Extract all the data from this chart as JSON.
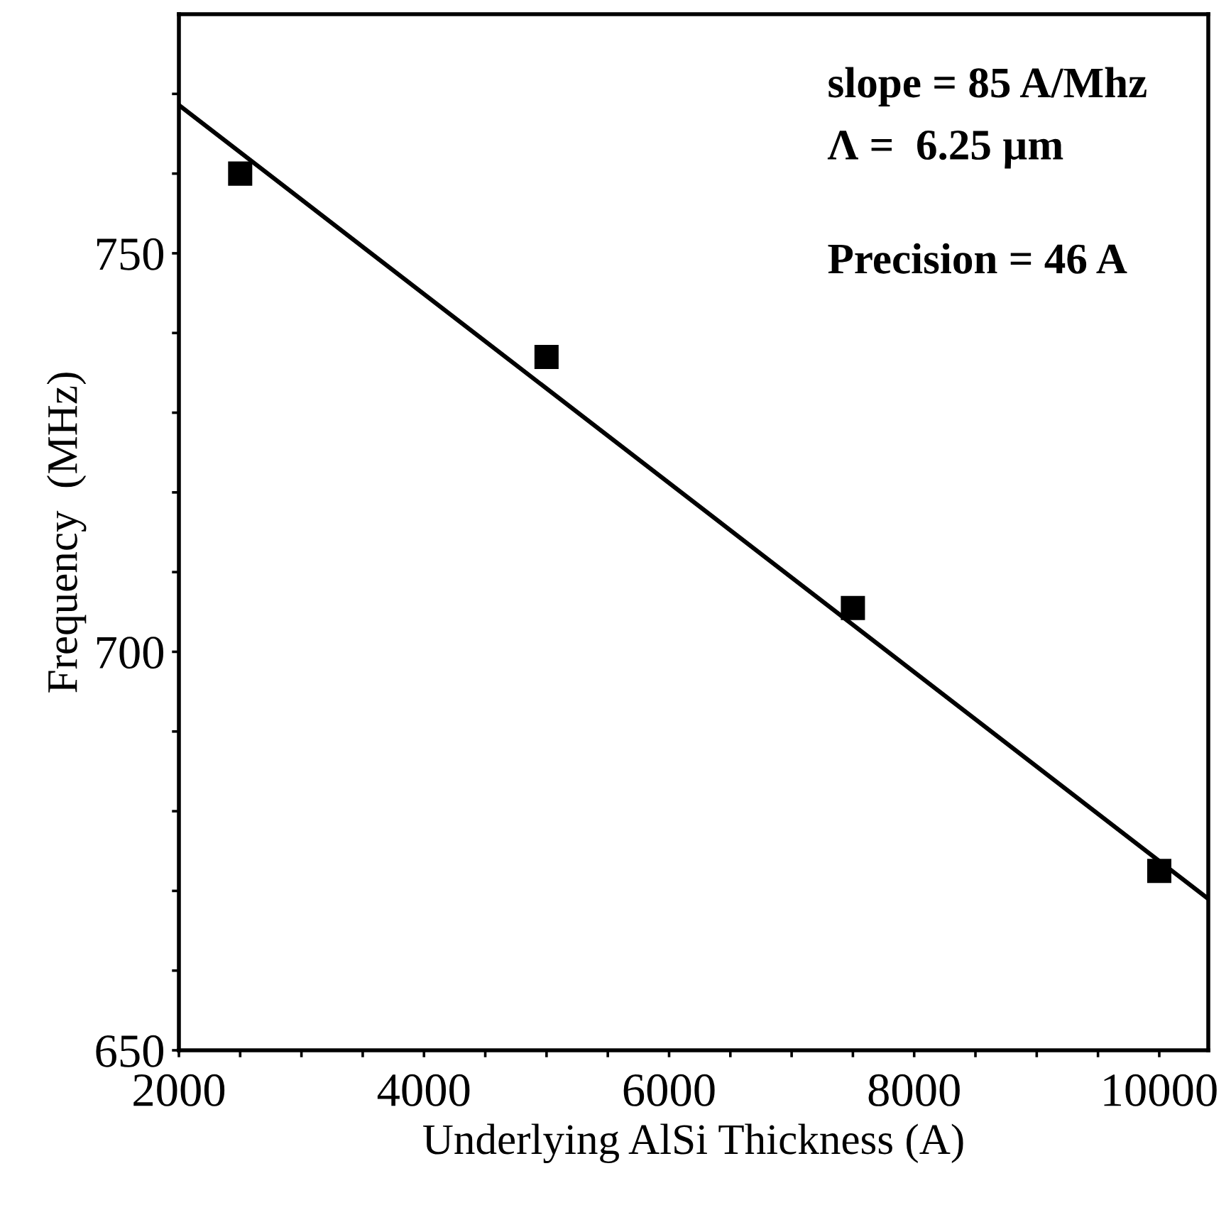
{
  "chart_data": {
    "type": "scatter",
    "xlabel": "Underlying AlSi Thickness (A)",
    "ylabel": "Frequency  (MHz)",
    "series": [
      {
        "color": "#000000",
        "marker": "square",
        "x": [
          2500,
          5000,
          7500,
          10000
        ],
        "values": [
          760,
          737,
          705.5,
          672.5
        ]
      },
      {
        "type": "line",
        "color": "#000000",
        "marker": "none",
        "line_style": "solid",
        "x": [
          2000,
          10400
        ],
        "values": [
          768.6,
          669
        ]
      }
    ],
    "xlim": [
      2000,
      10400
    ],
    "ylim": [
      650,
      780
    ],
    "xticks": [
      2000,
      {
        "value": 2500,
        "label": null
      },
      {
        "value": 3000,
        "label": null
      },
      {
        "value": 3500,
        "label": null
      },
      4000,
      {
        "value": 4500,
        "label": null
      },
      {
        "value": 5000,
        "label": null
      },
      {
        "value": 5500,
        "label": null
      },
      6000,
      {
        "value": 6500,
        "label": null
      },
      {
        "value": 7000,
        "label": null
      },
      {
        "value": 7500,
        "label": null
      },
      8000,
      {
        "value": 8500,
        "label": null
      },
      {
        "value": 9000,
        "label": null
      },
      {
        "value": 9500,
        "label": null
      },
      10000
    ],
    "yticks": [
      650,
      {
        "value": 660,
        "label": null
      },
      {
        "value": 670,
        "label": null
      },
      {
        "value": 680,
        "label": null
      },
      {
        "value": 690,
        "label": null
      },
      700,
      {
        "value": 710,
        "label": null
      },
      {
        "value": 720,
        "label": null
      },
      {
        "value": 730,
        "label": null
      },
      {
        "value": 740,
        "label": null
      },
      750,
      {
        "value": 760,
        "label": null
      },
      {
        "value": 770,
        "label": null
      }
    ],
    "grid": false,
    "legend": false,
    "annotations": [
      "slope = 85 A/Mhz",
      "Λ =  6.25 µm",
      "Precision = 46 A"
    ]
  }
}
